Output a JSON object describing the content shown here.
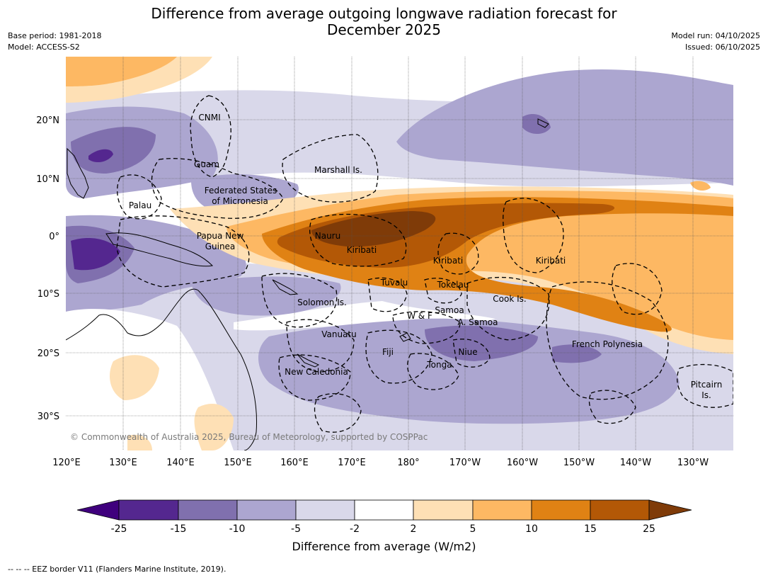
{
  "title_line1": "Difference from average outgoing longwave radiation forecast for",
  "title_line2": "December 2025",
  "meta_left": {
    "base_period": "Base period: 1981-2018",
    "model": "Model: ACCESS-S2"
  },
  "meta_right": {
    "model_run": "Model run: 04/10/2025",
    "issued": "Issued: 06/10/2025"
  },
  "lon_ticks": [
    "120°E",
    "130°E",
    "140°E",
    "150°E",
    "160°E",
    "170°E",
    "180°",
    "170°W",
    "160°W",
    "150°W",
    "140°W",
    "130°W"
  ],
  "lat_ticks": [
    "20°N",
    "10°N",
    "0°",
    "10°S",
    "20°S",
    "30°S"
  ],
  "region_labels": {
    "cnmi": "CNMI",
    "guam": "Guam",
    "fsm_line1": "Federated States",
    "fsm_line2": "of Micronesia",
    "marshall": "Marshall Is.",
    "palau": "Palau",
    "png_line1": "Papua New",
    "png_line2": "Guinea",
    "nauru": "Nauru",
    "kiribati_west": "Kiribati",
    "kiribati_central": "Kiribati",
    "kiribati_east": "Kiribati",
    "tuvalu": "Tuvalu",
    "tokelau": "Tokelau",
    "cook": "Cook Is.",
    "solomon": "Solomon Is.",
    "wf": "W & F",
    "samoa": "Samoa",
    "asamoa": "A. Samoa",
    "vanuatu": "Vanuatu",
    "fiji": "Fiji",
    "niue": "Niue",
    "frpoly": "French Polynesia",
    "newcal": "New Caledonia",
    "tonga": "Tonga",
    "pitcairn_line1": "Pitcairn",
    "pitcairn_line2": "Is."
  },
  "copyright": "© Commonwealth of Australia 2025, Bureau of Meteorology, supported by COSPPac",
  "colorbar": {
    "ticks": [
      "-25",
      "-15",
      "-10",
      "-5",
      "-2",
      "2",
      "5",
      "10",
      "15",
      "25"
    ],
    "colors": [
      "#3f007d",
      "#54278f",
      "#8070ae",
      "#aca6d0",
      "#d9d8ea",
      "#ffffff",
      "#fee0b5",
      "#fdb863",
      "#e08214",
      "#b35806",
      "#7f3b08"
    ],
    "title": "Difference from average (W/m2)"
  },
  "footer": "-- -- -- EEZ border V11 (Flanders Marine Institute, 2019)."
}
